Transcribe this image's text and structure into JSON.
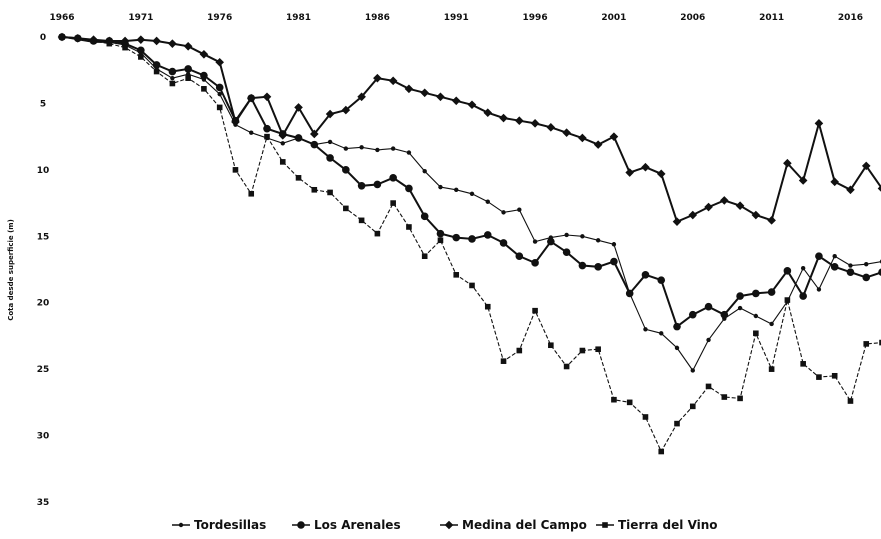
{
  "chart_data": {
    "type": "line",
    "title": "",
    "xlabel": "",
    "ylabel": "Cota desde superficie (m)",
    "x": [
      1966,
      1967,
      1968,
      1969,
      1970,
      1971,
      1972,
      1973,
      1974,
      1975,
      1976,
      1977,
      1978,
      1979,
      1980,
      1981,
      1982,
      1983,
      1984,
      1985,
      1986,
      1987,
      1988,
      1989,
      1990,
      1991,
      1992,
      1993,
      1994,
      1995,
      1996,
      1997,
      1998,
      1999,
      2000,
      2001,
      2002,
      2003,
      2004,
      2005,
      2006,
      2007,
      2008,
      2009,
      2010,
      2011,
      2012,
      2013,
      2014,
      2015,
      2016,
      2017,
      2018
    ],
    "x_ticks": [
      "1966",
      "1971",
      "1976",
      "1981",
      "1986",
      "1991",
      "1996",
      "2001",
      "2006",
      "2011",
      "2016"
    ],
    "y_ticks": [
      "0",
      "5",
      "10",
      "15",
      "20",
      "25",
      "30",
      "35"
    ],
    "ylim": [
      0,
      35
    ],
    "y_inverted": true,
    "line_color": "#111111",
    "series": [
      {
        "name": "Tordesillas",
        "marker": "dot-small",
        "values": [
          0,
          0.2,
          0.4,
          0.4,
          0.6,
          1.2,
          2.4,
          3.1,
          2.8,
          3.2,
          4.3,
          6.6,
          7.2,
          7.6,
          8.0,
          7.6,
          8.1,
          7.9,
          8.4,
          8.3,
          8.5,
          8.4,
          8.7,
          10.1,
          11.3,
          11.5,
          11.8,
          12.4,
          13.2,
          13.0,
          15.4,
          15.1,
          14.9,
          15.0,
          15.3,
          15.6,
          19.3,
          22.0,
          22.3,
          23.4,
          25.1,
          22.8,
          21.2,
          20.4,
          21.0,
          21.6,
          19.9,
          17.4,
          19.0,
          16.5,
          17.2,
          17.1,
          16.9
        ]
      },
      {
        "name": "Los Arenales",
        "marker": "circle",
        "values": [
          0,
          0.1,
          0.3,
          0.3,
          0.5,
          1.0,
          2.1,
          2.6,
          2.4,
          2.9,
          3.8,
          6.3,
          4.6,
          6.9,
          7.3,
          7.6,
          8.1,
          9.1,
          10.0,
          11.2,
          11.1,
          10.6,
          11.4,
          13.5,
          14.8,
          15.1,
          15.2,
          14.9,
          15.5,
          16.5,
          17.0,
          15.4,
          16.2,
          17.2,
          17.3,
          16.9,
          19.3,
          17.9,
          18.3,
          21.8,
          20.9,
          20.3,
          20.9,
          19.5,
          19.3,
          19.2,
          17.6,
          19.5,
          16.5,
          17.3,
          17.7,
          18.1,
          17.7
        ]
      },
      {
        "name": "Medina del Campo",
        "marker": "diamond",
        "values": [
          0,
          0.1,
          0.2,
          0.3,
          0.3,
          0.2,
          0.3,
          0.5,
          0.7,
          1.3,
          1.9,
          6.4,
          4.6,
          4.5,
          7.4,
          5.3,
          7.3,
          5.8,
          5.5,
          4.5,
          3.1,
          3.3,
          3.9,
          4.2,
          4.5,
          4.8,
          5.1,
          5.7,
          6.1,
          6.3,
          6.5,
          6.8,
          7.2,
          7.6,
          8.1,
          7.5,
          10.2,
          9.8,
          10.3,
          13.9,
          13.4,
          12.8,
          12.3,
          12.7,
          13.4,
          13.8,
          9.5,
          10.8,
          6.5,
          10.9,
          11.5,
          9.7,
          11.4
        ]
      },
      {
        "name": "Tierra del Vino",
        "marker": "square",
        "values": [
          0,
          0.1,
          0.3,
          0.5,
          0.8,
          1.5,
          2.6,
          3.5,
          3.1,
          3.9,
          5.3,
          10.0,
          11.8,
          7.5,
          9.4,
          10.6,
          11.5,
          11.7,
          12.9,
          13.8,
          14.8,
          12.5,
          14.3,
          16.5,
          15.3,
          17.9,
          18.7,
          20.3,
          24.4,
          23.6,
          20.6,
          23.2,
          24.8,
          23.6,
          23.5,
          27.3,
          27.5,
          28.6,
          31.2,
          29.1,
          27.8,
          26.3,
          27.1,
          27.2,
          22.3,
          25.0,
          19.8,
          24.6,
          25.6,
          25.5,
          27.4,
          23.1,
          23.0
        ]
      }
    ],
    "legend": {
      "position": "bottom",
      "entries": [
        "Tordesillas",
        "Los Arenales",
        "Medina del Campo",
        "Tierra del Vino"
      ]
    },
    "grid": false
  }
}
